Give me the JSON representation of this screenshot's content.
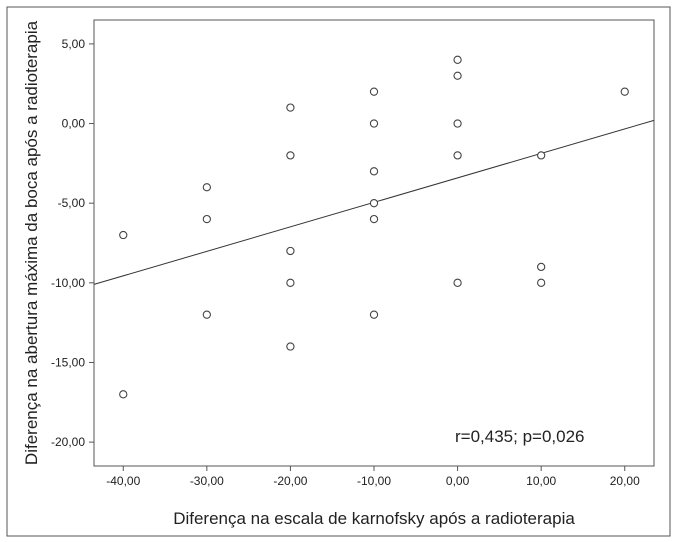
{
  "chart_data": {
    "type": "scatter",
    "title": "",
    "xlabel": "Diferença na escala de karnofsky após a radioterapia",
    "ylabel": "Diferença na abertura máxima da boca após a radioterapia",
    "xlim": [
      -43.5,
      23.5
    ],
    "ylim": [
      -21.5,
      6.5
    ],
    "xticks": [
      -40,
      -30,
      -20,
      -10,
      0,
      10,
      20
    ],
    "xtick_labels": [
      "-40,00",
      "-30,00",
      "-20,00",
      "-10,00",
      "0,00",
      "10,00",
      "20,00"
    ],
    "yticks": [
      5,
      0,
      -5,
      -10,
      -15,
      -20
    ],
    "ytick_labels": [
      "5,00",
      "0,00",
      "-5,00",
      "-10,00",
      "-15,00",
      "-20,00"
    ],
    "grid": false,
    "points": [
      {
        "x": -40,
        "y": -7
      },
      {
        "x": -40,
        "y": -17
      },
      {
        "x": -30,
        "y": -4
      },
      {
        "x": -30,
        "y": -6
      },
      {
        "x": -30,
        "y": -12
      },
      {
        "x": -20,
        "y": 1
      },
      {
        "x": -20,
        "y": -2
      },
      {
        "x": -20,
        "y": -8
      },
      {
        "x": -20,
        "y": -10
      },
      {
        "x": -20,
        "y": -14
      },
      {
        "x": -10,
        "y": 2
      },
      {
        "x": -10,
        "y": 0
      },
      {
        "x": -10,
        "y": -3
      },
      {
        "x": -10,
        "y": -5
      },
      {
        "x": -10,
        "y": -6
      },
      {
        "x": -10,
        "y": -12
      },
      {
        "x": 0,
        "y": 4
      },
      {
        "x": 0,
        "y": 3
      },
      {
        "x": 0,
        "y": 0
      },
      {
        "x": 0,
        "y": -2
      },
      {
        "x": 0,
        "y": -10
      },
      {
        "x": 10,
        "y": -2
      },
      {
        "x": 10,
        "y": -9
      },
      {
        "x": 10,
        "y": -10
      },
      {
        "x": 20,
        "y": 2
      }
    ],
    "fit_line": {
      "x": [
        -43.5,
        23.5
      ],
      "y": [
        -10.1,
        0.2
      ]
    },
    "annotation": "r=0,435; p=0,026"
  }
}
